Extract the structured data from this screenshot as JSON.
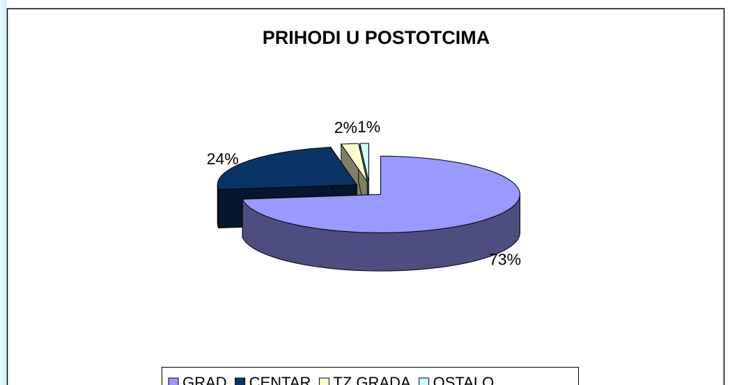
{
  "chart_data": {
    "type": "pie",
    "title": "PRIHODI U POSTOTCIMA",
    "categories": [
      "GRAD",
      "CENTAR",
      "TZ GRADA",
      "OSTALO"
    ],
    "values": [
      73,
      24,
      2,
      1
    ],
    "value_labels": [
      "73%",
      "24%",
      "2%",
      "1%"
    ],
    "colors": [
      "#9999ff",
      "#0b3466",
      "#ffffcc",
      "#ccffff"
    ],
    "legend": "bottom"
  }
}
